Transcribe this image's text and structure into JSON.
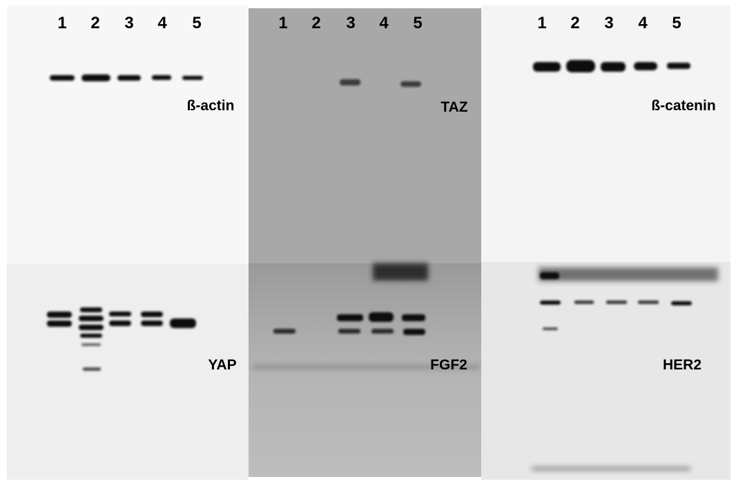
{
  "panels": [
    {
      "lanes": [
        "1",
        "2",
        "3",
        "4",
        "5"
      ],
      "top_label": "ß-actin",
      "bottom_label": "YAP"
    },
    {
      "lanes": [
        "1",
        "2",
        "3",
        "4",
        "5"
      ],
      "top_label": "TAZ",
      "bottom_label": "FGF2"
    },
    {
      "lanes": [
        "1",
        "2",
        "3",
        "4",
        "5"
      ],
      "top_label": "ß-catenin",
      "bottom_label": "HER2"
    }
  ]
}
